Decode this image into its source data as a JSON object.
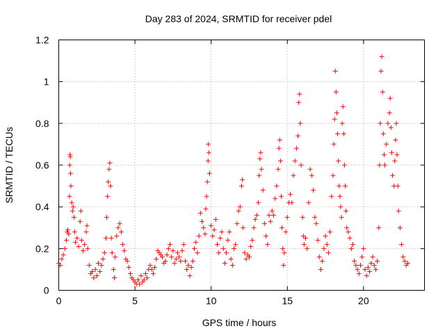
{
  "chart_data": {
    "type": "scatter",
    "title": "Day 283 of 2024, SRMTID for receiver pdel",
    "xlabel": "GPS time / hours",
    "ylabel": "SRMTID / TECUs",
    "xlim": [
      0,
      24
    ],
    "ylim": [
      0,
      1.2
    ],
    "x_ticks": [
      0,
      5,
      10,
      15,
      20
    ],
    "x_tick_labels": [
      "0",
      "5",
      "10",
      "15",
      "20"
    ],
    "y_ticks": [
      0,
      0.2,
      0.4,
      0.6,
      0.8,
      1.0,
      1.2
    ],
    "y_tick_labels": [
      "0",
      "0.2",
      "0.4",
      "0.6",
      "0.8",
      "1",
      "1.2"
    ],
    "grid": true,
    "marker": "plus",
    "color": "#ff0000",
    "series": [
      {
        "name": "pdel",
        "points": [
          [
            0.0,
            0.13
          ],
          [
            0.1,
            0.12
          ],
          [
            0.2,
            0.15
          ],
          [
            0.3,
            0.17
          ],
          [
            0.4,
            0.2
          ],
          [
            0.5,
            0.24
          ],
          [
            0.55,
            0.28
          ],
          [
            0.6,
            0.29
          ],
          [
            0.65,
            0.27
          ],
          [
            0.7,
            0.45
          ],
          [
            0.72,
            0.6
          ],
          [
            0.74,
            0.65
          ],
          [
            0.76,
            0.64
          ],
          [
            0.78,
            0.56
          ],
          [
            0.8,
            0.5
          ],
          [
            0.85,
            0.42
          ],
          [
            0.9,
            0.38
          ],
          [
            0.95,
            0.4
          ],
          [
            1.0,
            0.35
          ],
          [
            1.05,
            0.28
          ],
          [
            1.1,
            0.23
          ],
          [
            1.2,
            0.25
          ],
          [
            1.3,
            0.21
          ],
          [
            1.4,
            0.33
          ],
          [
            1.45,
            0.38
          ],
          [
            1.5,
            0.24
          ],
          [
            1.6,
            0.19
          ],
          [
            1.7,
            0.22
          ],
          [
            1.8,
            0.28
          ],
          [
            1.85,
            0.31
          ],
          [
            1.9,
            0.2
          ],
          [
            2.0,
            0.12
          ],
          [
            2.1,
            0.08
          ],
          [
            2.2,
            0.09
          ],
          [
            2.3,
            0.06
          ],
          [
            2.4,
            0.1
          ],
          [
            2.5,
            0.07
          ],
          [
            2.6,
            0.13
          ],
          [
            2.7,
            0.09
          ],
          [
            2.8,
            0.12
          ],
          [
            2.9,
            0.15
          ],
          [
            3.0,
            0.18
          ],
          [
            3.1,
            0.25
          ],
          [
            3.15,
            0.35
          ],
          [
            3.2,
            0.45
          ],
          [
            3.25,
            0.52
          ],
          [
            3.3,
            0.58
          ],
          [
            3.35,
            0.61
          ],
          [
            3.4,
            0.5
          ],
          [
            3.45,
            0.25
          ],
          [
            3.5,
            0.18
          ],
          [
            3.6,
            0.1
          ],
          [
            3.65,
            0.06
          ],
          [
            3.7,
            0.16
          ],
          [
            3.8,
            0.26
          ],
          [
            3.9,
            0.3
          ],
          [
            4.0,
            0.32
          ],
          [
            4.1,
            0.28
          ],
          [
            4.2,
            0.22
          ],
          [
            4.3,
            0.19
          ],
          [
            4.4,
            0.15
          ],
          [
            4.5,
            0.14
          ],
          [
            4.6,
            0.11
          ],
          [
            4.7,
            0.08
          ],
          [
            4.8,
            0.06
          ],
          [
            4.9,
            0.05
          ],
          [
            5.0,
            0.04
          ],
          [
            5.1,
            0.03
          ],
          [
            5.2,
            0.05
          ],
          [
            5.3,
            0.03
          ],
          [
            5.4,
            0.07
          ],
          [
            5.5,
            0.04
          ],
          [
            5.6,
            0.05
          ],
          [
            5.7,
            0.08
          ],
          [
            5.8,
            0.06
          ],
          [
            5.9,
            0.1
          ],
          [
            6.0,
            0.12
          ],
          [
            6.1,
            0.1
          ],
          [
            6.2,
            0.08
          ],
          [
            6.3,
            0.11
          ],
          [
            6.4,
            0.15
          ],
          [
            6.5,
            0.19
          ],
          [
            6.6,
            0.18
          ],
          [
            6.7,
            0.17
          ],
          [
            6.8,
            0.16
          ],
          [
            6.9,
            0.13
          ],
          [
            7.0,
            0.14
          ],
          [
            7.1,
            0.17
          ],
          [
            7.2,
            0.2
          ],
          [
            7.3,
            0.22
          ],
          [
            7.4,
            0.16
          ],
          [
            7.5,
            0.19
          ],
          [
            7.6,
            0.13
          ],
          [
            7.7,
            0.15
          ],
          [
            7.8,
            0.18
          ],
          [
            7.9,
            0.16
          ],
          [
            8.0,
            0.14
          ],
          [
            8.1,
            0.19
          ],
          [
            8.2,
            0.22
          ],
          [
            8.3,
            0.14
          ],
          [
            8.4,
            0.1
          ],
          [
            8.5,
            0.12
          ],
          [
            8.6,
            0.07
          ],
          [
            8.7,
            0.11
          ],
          [
            8.8,
            0.14
          ],
          [
            8.9,
            0.2
          ],
          [
            9.0,
            0.23
          ],
          [
            9.1,
            0.18
          ],
          [
            9.2,
            0.26
          ],
          [
            9.3,
            0.37
          ],
          [
            9.4,
            0.33
          ],
          [
            9.5,
            0.3
          ],
          [
            9.6,
            0.27
          ],
          [
            9.65,
            0.39
          ],
          [
            9.7,
            0.45
          ],
          [
            9.75,
            0.52
          ],
          [
            9.8,
            0.62
          ],
          [
            9.82,
            0.7
          ],
          [
            9.85,
            0.66
          ],
          [
            9.9,
            0.56
          ],
          [
            10.0,
            0.31
          ],
          [
            10.1,
            0.26
          ],
          [
            10.2,
            0.29
          ],
          [
            10.3,
            0.34
          ],
          [
            10.4,
            0.22
          ],
          [
            10.5,
            0.18
          ],
          [
            10.6,
            0.25
          ],
          [
            10.7,
            0.28
          ],
          [
            10.8,
            0.2
          ],
          [
            10.9,
            0.13
          ],
          [
            11.0,
            0.18
          ],
          [
            11.1,
            0.24
          ],
          [
            11.2,
            0.28
          ],
          [
            11.3,
            0.15
          ],
          [
            11.4,
            0.12
          ],
          [
            11.5,
            0.2
          ],
          [
            11.6,
            0.22
          ],
          [
            11.7,
            0.32
          ],
          [
            11.8,
            0.38
          ],
          [
            11.9,
            0.4
          ],
          [
            12.0,
            0.5
          ],
          [
            12.05,
            0.53
          ],
          [
            12.1,
            0.3
          ],
          [
            12.2,
            0.18
          ],
          [
            12.3,
            0.15
          ],
          [
            12.4,
            0.17
          ],
          [
            12.5,
            0.16
          ],
          [
            12.6,
            0.21
          ],
          [
            12.7,
            0.24
          ],
          [
            12.8,
            0.3
          ],
          [
            12.9,
            0.34
          ],
          [
            13.0,
            0.36
          ],
          [
            13.1,
            0.42
          ],
          [
            13.15,
            0.55
          ],
          [
            13.2,
            0.63
          ],
          [
            13.25,
            0.66
          ],
          [
            13.3,
            0.58
          ],
          [
            13.4,
            0.48
          ],
          [
            13.5,
            0.32
          ],
          [
            13.6,
            0.26
          ],
          [
            13.7,
            0.22
          ],
          [
            13.8,
            0.36
          ],
          [
            13.9,
            0.33
          ],
          [
            14.0,
            0.38
          ],
          [
            14.1,
            0.36
          ],
          [
            14.2,
            0.44
          ],
          [
            14.3,
            0.5
          ],
          [
            14.4,
            0.58
          ],
          [
            14.45,
            0.68
          ],
          [
            14.5,
            0.72
          ],
          [
            14.55,
            0.62
          ],
          [
            14.6,
            0.45
          ],
          [
            14.65,
            0.3
          ],
          [
            14.7,
            0.2
          ],
          [
            14.75,
            0.12
          ],
          [
            14.8,
            0.18
          ],
          [
            14.9,
            0.28
          ],
          [
            15.0,
            0.35
          ],
          [
            15.1,
            0.42
          ],
          [
            15.2,
            0.46
          ],
          [
            15.3,
            0.42
          ],
          [
            15.4,
            0.55
          ],
          [
            15.5,
            0.62
          ],
          [
            15.6,
            0.68
          ],
          [
            15.7,
            0.74
          ],
          [
            15.75,
            0.9
          ],
          [
            15.8,
            0.94
          ],
          [
            15.85,
            0.8
          ],
          [
            15.9,
            0.6
          ],
          [
            16.0,
            0.35
          ],
          [
            16.05,
            0.26
          ],
          [
            16.1,
            0.22
          ],
          [
            16.2,
            0.25
          ],
          [
            16.3,
            0.2
          ],
          [
            16.4,
            0.42
          ],
          [
            16.5,
            0.58
          ],
          [
            16.6,
            0.55
          ],
          [
            16.7,
            0.48
          ],
          [
            16.8,
            0.35
          ],
          [
            16.9,
            0.32
          ],
          [
            17.0,
            0.24
          ],
          [
            17.1,
            0.16
          ],
          [
            17.2,
            0.1
          ],
          [
            17.3,
            0.14
          ],
          [
            17.4,
            0.2
          ],
          [
            17.5,
            0.26
          ],
          [
            17.6,
            0.22
          ],
          [
            17.7,
            0.18
          ],
          [
            17.8,
            0.28
          ],
          [
            17.9,
            0.45
          ],
          [
            18.0,
            0.55
          ],
          [
            18.05,
            0.7
          ],
          [
            18.1,
            0.82
          ],
          [
            18.15,
            1.05
          ],
          [
            18.2,
            0.95
          ],
          [
            18.25,
            0.85
          ],
          [
            18.3,
            0.75
          ],
          [
            18.35,
            0.62
          ],
          [
            18.4,
            0.5
          ],
          [
            18.45,
            0.45
          ],
          [
            18.5,
            0.4
          ],
          [
            18.55,
            0.35
          ],
          [
            18.6,
            0.8
          ],
          [
            18.65,
            0.88
          ],
          [
            18.7,
            0.75
          ],
          [
            18.75,
            0.6
          ],
          [
            18.8,
            0.5
          ],
          [
            18.85,
            0.38
          ],
          [
            18.9,
            0.3
          ],
          [
            19.0,
            0.28
          ],
          [
            19.1,
            0.25
          ],
          [
            19.2,
            0.2
          ],
          [
            19.3,
            0.22
          ],
          [
            19.4,
            0.14
          ],
          [
            19.5,
            0.12
          ],
          [
            19.6,
            0.1
          ],
          [
            19.7,
            0.08
          ],
          [
            19.8,
            0.12
          ],
          [
            19.9,
            0.16
          ],
          [
            20.0,
            0.2
          ],
          [
            20.1,
            0.1
          ],
          [
            20.2,
            0.07
          ],
          [
            20.3,
            0.11
          ],
          [
            20.4,
            0.09
          ],
          [
            20.5,
            0.13
          ],
          [
            20.6,
            0.16
          ],
          [
            20.7,
            0.12
          ],
          [
            20.8,
            0.1
          ],
          [
            20.9,
            0.14
          ],
          [
            21.0,
            0.3
          ],
          [
            21.05,
            0.6
          ],
          [
            21.1,
            0.8
          ],
          [
            21.15,
            1.05
          ],
          [
            21.2,
            1.12
          ],
          [
            21.25,
            0.95
          ],
          [
            21.3,
            0.75
          ],
          [
            21.35,
            0.65
          ],
          [
            21.4,
            0.6
          ],
          [
            21.5,
            0.7
          ],
          [
            21.6,
            0.8
          ],
          [
            21.7,
            0.85
          ],
          [
            21.75,
            0.92
          ],
          [
            21.8,
            0.78
          ],
          [
            21.85,
            0.66
          ],
          [
            21.9,
            0.55
          ],
          [
            22.0,
            0.5
          ],
          [
            22.05,
            0.62
          ],
          [
            22.1,
            0.72
          ],
          [
            22.15,
            0.8
          ],
          [
            22.2,
            0.65
          ],
          [
            22.25,
            0.5
          ],
          [
            22.3,
            0.38
          ],
          [
            22.4,
            0.3
          ],
          [
            22.5,
            0.22
          ],
          [
            22.6,
            0.16
          ],
          [
            22.7,
            0.14
          ],
          [
            22.8,
            0.12
          ],
          [
            22.9,
            0.13
          ]
        ]
      }
    ]
  }
}
